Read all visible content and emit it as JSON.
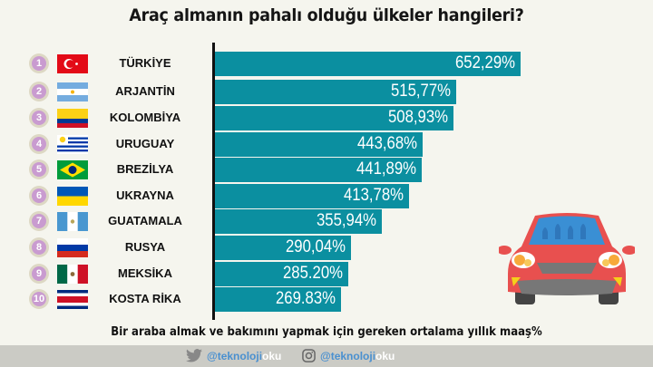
{
  "header": {
    "title": "Araç almanın pahalı olduğu ülkeler hangileri?"
  },
  "subtitle": "Bir araba almak ve bakımını yapmak için gereken ortalama yıllık maaş%",
  "footer": {
    "twitter": {
      "icon": "twitter-icon",
      "handle_a": "@teknoloji",
      "handle_b": "oku"
    },
    "instagram": {
      "icon": "instagram-icon",
      "handle_a": "@teknoloji",
      "handle_b": "oku"
    }
  },
  "colors": {
    "bar": "#0b8fa0",
    "rank_badge": "#c99bd0",
    "background": "#f5f5ee",
    "footer": "#cbcbc5"
  },
  "rows": [
    {
      "rank": "1",
      "country": "TÜRKİYE",
      "value_label": "652,29%",
      "flag": "turkey-flag"
    },
    {
      "rank": "2",
      "country": "ARJANTİN",
      "value_label": "515,77%",
      "flag": "argentina-flag"
    },
    {
      "rank": "3",
      "country": "KOLOMBİYA",
      "value_label": "508,93%",
      "flag": "colombia-flag"
    },
    {
      "rank": "4",
      "country": "URUGUAY",
      "value_label": "443,68%",
      "flag": "uruguay-flag"
    },
    {
      "rank": "5",
      "country": "BREZİLYA",
      "value_label": "441,89%",
      "flag": "brazil-flag"
    },
    {
      "rank": "6",
      "country": "UKRAYNA",
      "value_label": "413,78%",
      "flag": "ukraine-flag"
    },
    {
      "rank": "7",
      "country": "GUATAMALA",
      "value_label": "355,94%",
      "flag": "guatemala-flag"
    },
    {
      "rank": "8",
      "country": "RUSYA",
      "value_label": "290,04%",
      "flag": "russia-flag"
    },
    {
      "rank": "9",
      "country": "MEKSİKA",
      "value_label": "285.20%",
      "flag": "mexico-flag"
    },
    {
      "rank": "10",
      "country": "KOSTA RİKA",
      "value_label": "269.83%",
      "flag": "costa-rica-flag"
    }
  ],
  "chart_data": {
    "type": "bar",
    "orientation": "horizontal",
    "title": "Araç almanın pahalı olduğu ülkeler hangileri?",
    "xlabel": "Bir araba almak ve bakımını yapmak için gereken ortalama yıllık maaş%",
    "ylabel": "",
    "categories": [
      "TÜRKİYE",
      "ARJANTİN",
      "KOLOMBİYA",
      "URUGUAY",
      "BREZİLYA",
      "UKRAYNA",
      "GUATAMALA",
      "RUSYA",
      "MEKSİKA",
      "KOSTA RİKA"
    ],
    "values": [
      652.29,
      515.77,
      508.93,
      443.68,
      441.89,
      413.78,
      355.94,
      290.04,
      285.2,
      269.83
    ],
    "value_labels": [
      "652,29%",
      "515,77%",
      "508,93%",
      "443,68%",
      "441,89%",
      "413,78%",
      "355,94%",
      "290,04%",
      "285.20%",
      "269.83%"
    ],
    "grid": false,
    "legend": null
  }
}
